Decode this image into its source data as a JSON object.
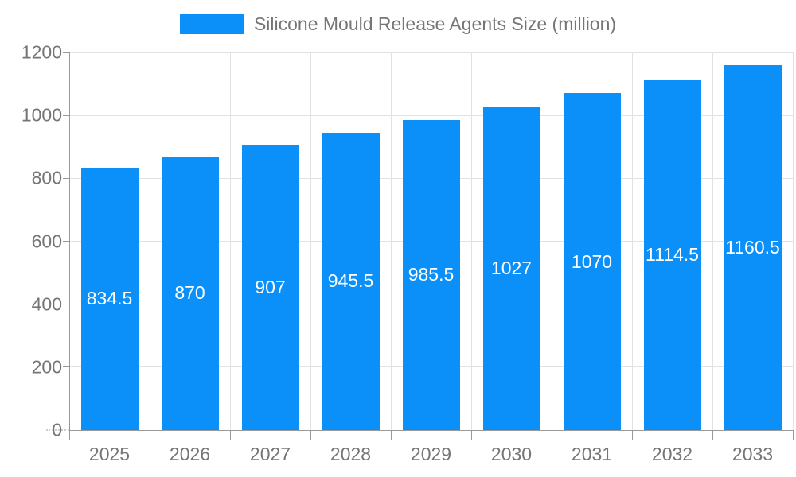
{
  "chart_data": {
    "type": "bar",
    "title": "Silicone Mould Release Agents Size (million)",
    "legend_entries": [
      "Silicone Mould Release Agents Size (million)"
    ],
    "legend_position": "top",
    "categories": [
      "2025",
      "2026",
      "2027",
      "2028",
      "2029",
      "2030",
      "2031",
      "2032",
      "2033"
    ],
    "series": [
      {
        "name": "Silicone Mould Release Agents Size (million)",
        "values": [
          834.5,
          870,
          907,
          945.5,
          985.5,
          1027,
          1070,
          1114.5,
          1160.5
        ]
      }
    ],
    "xlabel": "",
    "ylabel": "",
    "ylim": [
      0,
      1200
    ],
    "ytick_step": 200,
    "ytick_labels": [
      "0",
      "200",
      "400",
      "600",
      "800",
      "1000",
      "1200"
    ],
    "grid": true,
    "value_labels": "inside-center"
  },
  "colors": {
    "bar": "#0a90f8",
    "text": "#757575",
    "grid": "#e2e2e2",
    "axis": "#999999",
    "value_label": "#ffffff"
  }
}
